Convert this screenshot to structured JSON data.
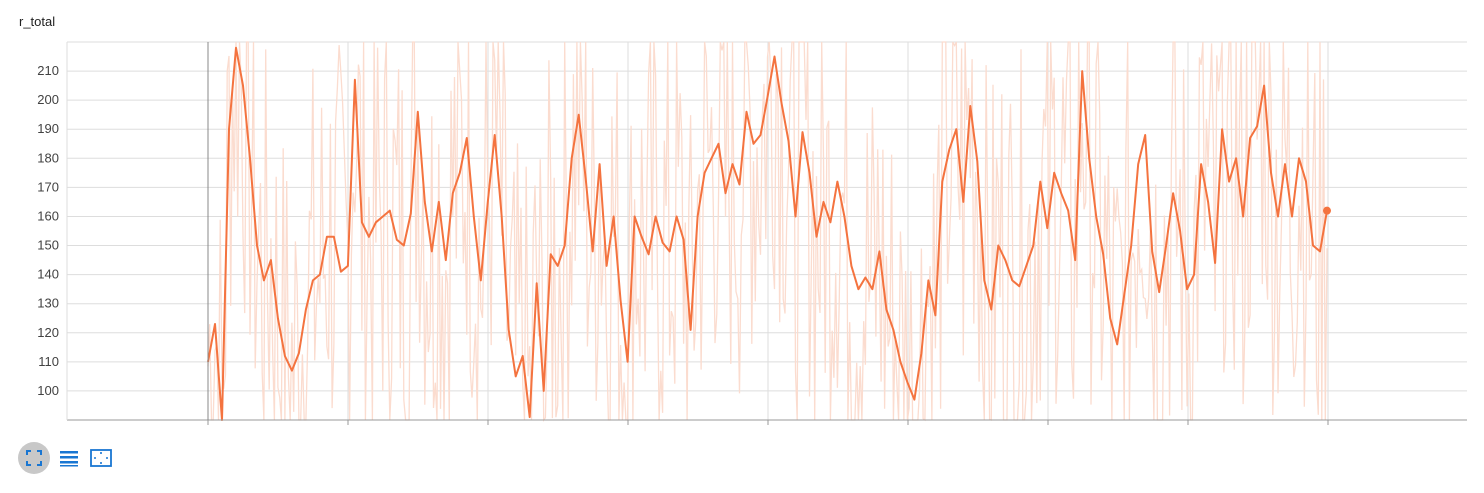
{
  "card": {
    "title": "r_total"
  },
  "toolbar": {
    "buttons": [
      {
        "icon": "fit-domain-icon",
        "active": true
      },
      {
        "icon": "list-icon",
        "active": false
      },
      {
        "icon": "log-scale-icon",
        "active": false
      }
    ]
  },
  "chart_data": {
    "type": "line",
    "title": "r_total",
    "xlabel": "",
    "ylabel": "",
    "ylim": [
      90,
      220
    ],
    "yticks": [
      100,
      110,
      120,
      130,
      140,
      150,
      160,
      170,
      180,
      190,
      200,
      210
    ],
    "grid": true,
    "legend": "none",
    "colors": {
      "smoothed": "#f4733f",
      "raw": "#fbdccf",
      "grid": "#dddddd",
      "axis": "#999999"
    },
    "series": [
      {
        "role": "smoothed",
        "x": [
          0,
          1,
          2,
          3,
          4,
          5,
          6,
          7,
          8,
          9,
          10,
          11,
          12,
          13,
          14,
          15,
          16,
          17,
          18,
          19,
          20,
          21,
          22,
          23,
          24,
          25,
          26,
          27,
          28,
          29,
          30,
          31,
          32,
          33,
          34,
          35,
          36,
          37,
          38,
          39,
          40,
          41,
          42,
          43,
          44,
          45,
          46,
          47,
          48,
          49,
          50,
          51,
          52,
          53,
          54,
          55,
          56,
          57,
          58,
          59,
          60,
          61,
          62,
          63,
          64,
          65,
          66,
          67,
          68,
          69,
          70,
          71,
          72,
          73,
          74,
          75,
          76,
          77,
          78,
          79,
          80,
          81,
          82,
          83,
          84,
          85,
          86,
          87,
          88,
          89,
          90,
          91,
          92,
          93,
          94,
          95,
          96,
          97,
          98,
          99,
          100,
          101,
          102,
          103,
          104,
          105,
          106,
          107,
          108,
          109,
          110,
          111,
          112,
          113,
          114,
          115,
          116,
          117,
          118,
          119,
          120,
          121,
          122,
          123,
          124,
          125,
          126,
          127,
          128,
          129,
          130,
          131,
          132,
          133,
          134,
          135,
          136,
          137,
          138,
          139,
          140,
          141,
          142,
          143,
          144,
          145,
          146,
          147,
          148,
          149,
          150,
          151,
          152,
          153,
          154,
          155,
          156,
          157,
          158,
          159,
          160
        ],
        "values": [
          110,
          123,
          90,
          190,
          218,
          205,
          180,
          150,
          138,
          145,
          125,
          112,
          107,
          113,
          128,
          138,
          140,
          153,
          153,
          141,
          143,
          207,
          158,
          153,
          158,
          160,
          162,
          152,
          150,
          161,
          196,
          165,
          148,
          165,
          145,
          168,
          175,
          187,
          160,
          138,
          165,
          188,
          160,
          121,
          105,
          112,
          91,
          137,
          100,
          147,
          143,
          150,
          180,
          195,
          173,
          148,
          178,
          143,
          160,
          131,
          110,
          160,
          153,
          147,
          160,
          151,
          148,
          160,
          152,
          121,
          160,
          175,
          180,
          185,
          168,
          178,
          171,
          196,
          185,
          188,
          201,
          215,
          199,
          186,
          160,
          189,
          175,
          153,
          165,
          158,
          172,
          160,
          143,
          135,
          139,
          135,
          148,
          128,
          121,
          110,
          103,
          97,
          113,
          138,
          126,
          172,
          183,
          190,
          165,
          198,
          179,
          138,
          128,
          150,
          145,
          138,
          136,
          143,
          150,
          172,
          156,
          175,
          168,
          162,
          145,
          210,
          180,
          160,
          147,
          125,
          116,
          133,
          150,
          178,
          188,
          148,
          134,
          150,
          168,
          155,
          135,
          140,
          178,
          165,
          144,
          190,
          172,
          180,
          160,
          187,
          191,
          205,
          175,
          160,
          178,
          160,
          180,
          172,
          150,
          148,
          162
        ],
        "note_unused": "",
        "tail_values": []
      },
      {
        "role": "raw",
        "x": [],
        "values": []
      }
    ]
  }
}
